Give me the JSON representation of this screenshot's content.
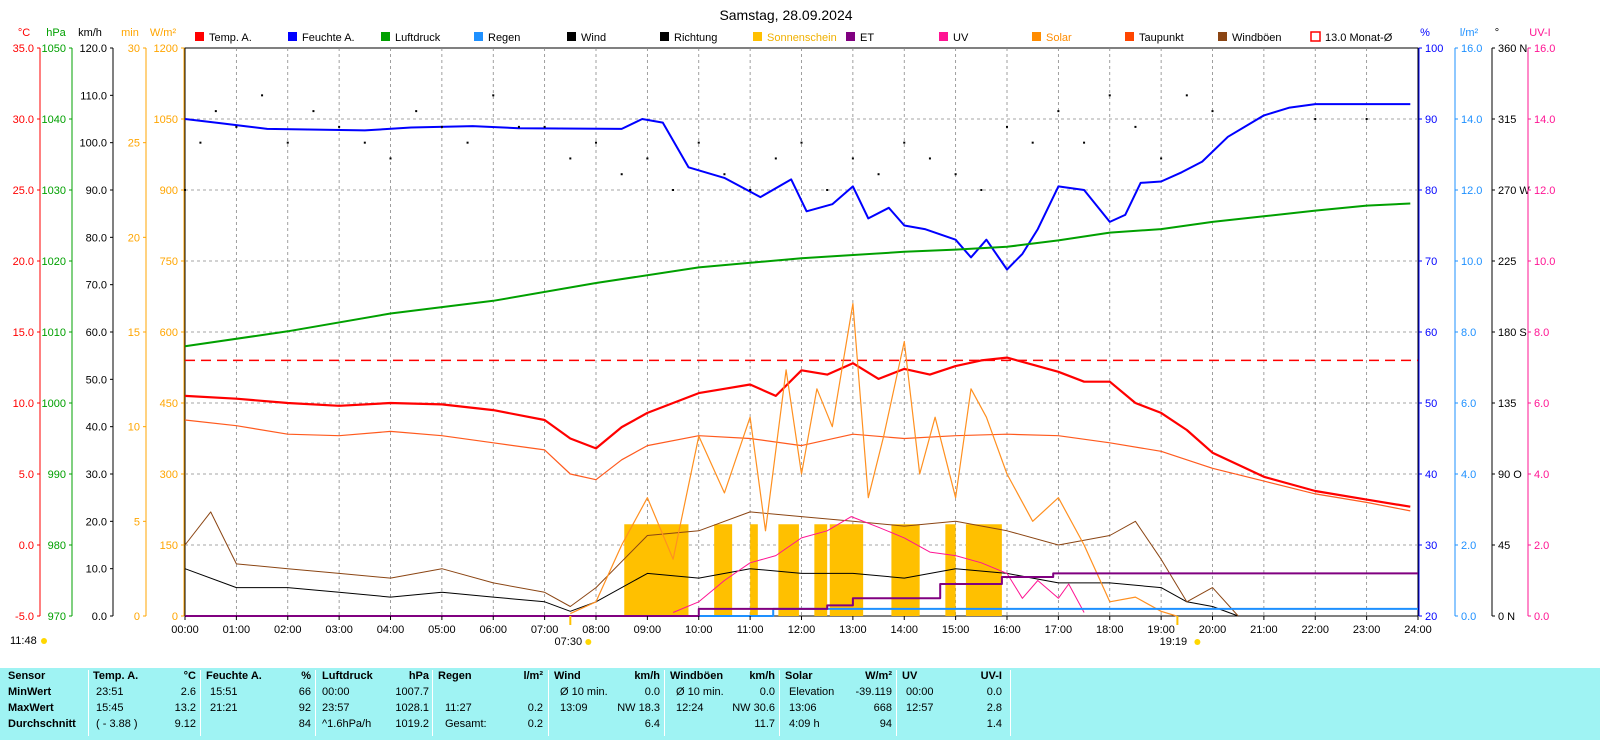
{
  "title": "Samstag, 28.09.2024",
  "legend": [
    {
      "label": "Temp. A.",
      "color": "#ff0000",
      "style": "fill"
    },
    {
      "label": "Feuchte A.",
      "color": "#0000ff",
      "style": "fill"
    },
    {
      "label": "Luftdruck",
      "color": "#00a000",
      "style": "fill"
    },
    {
      "label": "Regen",
      "color": "#1e90ff",
      "style": "fill"
    },
    {
      "label": "Wind",
      "color": "#000000",
      "style": "fill"
    },
    {
      "label": "Richtung",
      "color": "#000000",
      "style": "fill"
    },
    {
      "label": "Sonnenschein",
      "color": "#ffc000",
      "style": "fill"
    },
    {
      "label": "ET",
      "color": "#800080",
      "style": "fill"
    },
    {
      "label": "UV",
      "color": "#ff1493",
      "style": "fill"
    },
    {
      "label": "Solar",
      "color": "#ff8c00",
      "style": "fill"
    },
    {
      "label": "Taupunkt",
      "color": "#ff4500",
      "style": "fill"
    },
    {
      "label": "Windböen",
      "color": "#8b4513",
      "style": "fill"
    },
    {
      "label": "13.0 Monat-Ø",
      "color": "#ff0000",
      "style": "outline"
    }
  ],
  "left_axes": [
    {
      "unit": "°C",
      "color": "#ff0000",
      "ticks": [
        "35.0",
        "30.0",
        "25.0",
        "20.0",
        "15.0",
        "10.0",
        "5.0",
        "0.0",
        "-5.0"
      ]
    },
    {
      "unit": "hPa",
      "color": "#00a000",
      "ticks": [
        "1050",
        "1040",
        "1030",
        "1020",
        "1010",
        "1000",
        "990",
        "980",
        "970"
      ]
    },
    {
      "unit": "km/h",
      "color": "#000000",
      "ticks": [
        "120.0",
        "110.0",
        "100.0",
        "90.0",
        "80.0",
        "70.0",
        "60.0",
        "50.0",
        "40.0",
        "30.0",
        "20.0",
        "10.0",
        "0.0"
      ]
    },
    {
      "unit": "min",
      "color": "#ffa500",
      "ticks": [
        "30",
        "25",
        "20",
        "15",
        "10",
        "5",
        "0"
      ]
    },
    {
      "unit": "W/m²",
      "color": "#ffa500",
      "ticks": [
        "1200",
        "1050",
        "900",
        "750",
        "600",
        "450",
        "300",
        "150",
        "0"
      ]
    }
  ],
  "right_axes": [
    {
      "unit": "%",
      "color": "#0000ff",
      "ticks": [
        "100",
        "90",
        "80",
        "70",
        "60",
        "50",
        "40",
        "30",
        "20"
      ]
    },
    {
      "unit": "l/m²",
      "color": "#1e90ff",
      "ticks": [
        "16.0",
        "14.0",
        "12.0",
        "10.0",
        "8.0",
        "6.0",
        "4.0",
        "2.0",
        "0.0"
      ]
    },
    {
      "unit": "°",
      "color": "#000000",
      "ticks": [
        "360 N",
        "315",
        "270 W",
        "225",
        "180 S",
        "135",
        "90 O",
        "45",
        "0 N"
      ]
    },
    {
      "unit": "UV-I",
      "color": "#ff1493",
      "ticks": [
        "16.0",
        "14.0",
        "12.0",
        "10.0",
        "8.0",
        "6.0",
        "4.0",
        "2.0",
        "0.0"
      ]
    }
  ],
  "x_ticks": [
    "00:00",
    "01:00",
    "02:00",
    "03:00",
    "04:00",
    "05:00",
    "06:00",
    "07:00",
    "08:00",
    "09:00",
    "10:00",
    "11:00",
    "12:00",
    "13:00",
    "14:00",
    "15:00",
    "16:00",
    "17:00",
    "18:00",
    "19:00",
    "20:00",
    "21:00",
    "22:00",
    "23:00",
    "24:00"
  ],
  "sunrise": "07:30",
  "sunset": "19:19",
  "current_time": "11:48",
  "chart_data": {
    "type": "line",
    "title": "Samstag, 28.09.2024",
    "x_range_hours": [
      0,
      24
    ],
    "month_avg_temp": 13.0,
    "series": [
      {
        "name": "Temp. A.",
        "unit": "°C",
        "x": [
          0,
          1,
          2,
          3,
          4,
          5,
          6,
          7,
          7.5,
          8,
          8.5,
          9,
          9.5,
          10,
          10.5,
          11,
          11.5,
          12,
          12.5,
          13,
          13.5,
          14,
          14.5,
          15,
          15.5,
          16,
          16.5,
          17,
          17.5,
          18,
          18.5,
          19,
          19.5,
          20,
          21,
          22,
          23,
          23.85
        ],
        "y": [
          10.5,
          10.3,
          10.0,
          9.8,
          10.0,
          9.9,
          9.5,
          8.8,
          7.5,
          6.8,
          8.3,
          9.3,
          10.0,
          10.7,
          11.0,
          11.3,
          10.5,
          12.3,
          12.0,
          12.8,
          11.7,
          12.4,
          12.0,
          12.6,
          13.0,
          13.2,
          12.7,
          12.2,
          11.5,
          11.5,
          10.0,
          9.3,
          8.1,
          6.5,
          4.8,
          3.8,
          3.2,
          2.7
        ]
      },
      {
        "name": "Taupunkt",
        "unit": "°C",
        "x": [
          0,
          1,
          2,
          3,
          4,
          5,
          6,
          7,
          7.5,
          8,
          8.5,
          9,
          10,
          11,
          12,
          13,
          14,
          15,
          16,
          17,
          18,
          19,
          20,
          21,
          22,
          23,
          23.85
        ],
        "y": [
          8.8,
          8.4,
          7.8,
          7.7,
          8.0,
          7.7,
          7.2,
          6.7,
          5.0,
          4.6,
          6.0,
          7.0,
          7.7,
          7.5,
          7.0,
          7.8,
          7.5,
          7.7,
          7.8,
          7.7,
          7.2,
          6.6,
          5.4,
          4.5,
          3.6,
          3.0,
          2.4
        ]
      },
      {
        "name": "Feuchte A.",
        "unit": "%",
        "x": [
          0,
          0.7,
          1.6,
          3.5,
          4.4,
          5.6,
          6.5,
          8.5,
          8.9,
          9.3,
          9.8,
          10.5,
          11.2,
          11.8,
          12.1,
          12.6,
          13.0,
          13.3,
          13.7,
          14.0,
          14.4,
          15.0,
          15.3,
          15.6,
          16.0,
          16.3,
          16.6,
          17.0,
          17.5,
          18.0,
          18.3,
          18.6,
          19.0,
          19.4,
          19.8,
          20.3,
          21.0,
          21.5,
          22.0,
          22.5,
          23.0,
          23.85
        ],
        "y": [
          90.0,
          89.4,
          88.6,
          88.4,
          88.8,
          89.0,
          88.7,
          88.6,
          90.0,
          89.5,
          83.2,
          81.7,
          79.0,
          81.5,
          77.0,
          78.0,
          80.5,
          76.0,
          77.5,
          75.0,
          74.5,
          73.0,
          70.5,
          73.0,
          68.8,
          71.0,
          74.5,
          80.5,
          80.0,
          75.5,
          76.5,
          81.0,
          81.2,
          82.5,
          84.0,
          87.5,
          90.5,
          91.6,
          92.1,
          92.1,
          92.1,
          92.1
        ]
      },
      {
        "name": "Luftdruck",
        "unit": "hPa",
        "x": [
          0,
          2,
          4,
          6,
          8,
          10,
          12,
          14,
          15,
          16,
          17,
          18,
          19,
          20,
          21,
          22,
          23,
          23.85
        ],
        "y": [
          1008.0,
          1010.1,
          1012.6,
          1014.4,
          1016.9,
          1019.1,
          1020.4,
          1021.3,
          1021.6,
          1022.0,
          1022.9,
          1024.0,
          1024.5,
          1025.5,
          1026.3,
          1027.1,
          1027.8,
          1028.1
        ]
      },
      {
        "name": "Wind",
        "unit": "km/h",
        "x": [
          0,
          1,
          2,
          3,
          4,
          5,
          6,
          7,
          7.5,
          8,
          9,
          10,
          11,
          12,
          13,
          14,
          15,
          16,
          17,
          18,
          19,
          19.5,
          20,
          20.5
        ],
        "y": [
          10,
          6,
          6,
          5,
          4,
          5,
          4,
          3,
          1,
          3,
          9,
          8,
          10,
          9,
          9,
          8,
          10,
          9,
          7,
          7,
          6,
          3,
          2,
          0
        ]
      },
      {
        "name": "Windböen",
        "unit": "km/h",
        "x": [
          0,
          0.5,
          1,
          2,
          3,
          4,
          5,
          6,
          7,
          7.5,
          8,
          9,
          10,
          11,
          12,
          13,
          14,
          15,
          16,
          17,
          18,
          18.5,
          19,
          19.5,
          20,
          20.5
        ],
        "y": [
          15,
          22,
          11,
          10,
          9,
          8,
          10,
          7,
          5,
          2,
          6,
          17,
          18,
          22,
          21,
          20,
          19,
          20,
          18,
          15,
          17,
          20,
          12,
          3,
          6,
          0
        ]
      },
      {
        "name": "Solar",
        "unit": "W/m²",
        "x": [
          7.5,
          8,
          8.5,
          9,
          9.5,
          10,
          10.5,
          11,
          11.3,
          11.7,
          12,
          12.3,
          12.6,
          13,
          13.3,
          13.6,
          14,
          14.3,
          14.6,
          15,
          15.3,
          15.6,
          16,
          16.5,
          17,
          17.5,
          18,
          18.5,
          19,
          19.3
        ],
        "y": [
          5,
          30,
          150,
          250,
          120,
          380,
          260,
          420,
          180,
          520,
          300,
          480,
          400,
          660,
          250,
          380,
          580,
          300,
          420,
          250,
          480,
          420,
          300,
          200,
          250,
          150,
          30,
          40,
          10,
          0
        ]
      },
      {
        "name": "UV",
        "unit": "UV-I",
        "x": [
          9.5,
          10,
          10.5,
          11,
          11.5,
          12,
          12.5,
          12.97,
          13.5,
          14,
          14.5,
          15,
          15.5,
          16,
          16.3,
          16.6,
          17,
          17.2,
          17.5
        ],
        "y": [
          0.1,
          0.4,
          1.0,
          1.5,
          1.7,
          2.2,
          2.4,
          2.8,
          2.5,
          2.2,
          1.8,
          1.7,
          1.5,
          1.2,
          0.5,
          1.0,
          0.5,
          0.9,
          0.1
        ]
      },
      {
        "name": "Regen",
        "unit": "l/m²",
        "x": [
          0,
          11.45,
          11.45,
          24
        ],
        "y": [
          0,
          0,
          0.2,
          0.2
        ]
      },
      {
        "name": "ET",
        "unit": "l/m²",
        "x": [
          0,
          10,
          10,
          12.5,
          12.5,
          13,
          13,
          14.7,
          14.7,
          15.9,
          15.9,
          16.9,
          16.9,
          24
        ],
        "y": [
          0,
          0,
          0.2,
          0.2,
          0.3,
          0.3,
          0.5,
          0.5,
          0.9,
          0.9,
          1.1,
          1.1,
          1.2,
          1.2
        ]
      },
      {
        "name": "Richtung",
        "unit": "°",
        "x": [
          0,
          0.3,
          0.6,
          1,
          1.5,
          2,
          2.5,
          3,
          3.5,
          4,
          4.5,
          5,
          5.5,
          6,
          6.5,
          7,
          7.5,
          8,
          8.5,
          9,
          9.5,
          10,
          10.5,
          11,
          11.5,
          12,
          12.5,
          13,
          13.5,
          14,
          14.5,
          15,
          15.5,
          16,
          16.5,
          17,
          17.5,
          18,
          18.5,
          19,
          19.5,
          20,
          22,
          23
        ],
        "y": [
          270,
          300,
          320,
          310,
          330,
          300,
          320,
          310,
          300,
          290,
          320,
          310,
          300,
          330,
          310,
          310,
          290,
          300,
          280,
          290,
          270,
          300,
          280,
          270,
          290,
          300,
          270,
          290,
          280,
          300,
          290,
          280,
          270,
          310,
          300,
          320,
          300,
          330,
          310,
          290,
          330,
          320,
          315,
          315
        ]
      }
    ],
    "sunshine_blocks_hours": [
      [
        8.55,
        9.8
      ],
      [
        10.3,
        10.65
      ],
      [
        11.0,
        11.15
      ],
      [
        11.55,
        11.95
      ],
      [
        12.25,
        12.5
      ],
      [
        12.55,
        13.2
      ],
      [
        13.75,
        14.3
      ],
      [
        14.8,
        15.0
      ],
      [
        15.2,
        15.9
      ]
    ]
  },
  "stats": {
    "headers": {
      "sensor": "Sensor",
      "temp": "Temp. A.",
      "temp_unit": "°C",
      "hum": "Feuchte A.",
      "hum_unit": "%",
      "press": "Luftdruck",
      "press_unit": "hPa",
      "rain": "Regen",
      "rain_unit": "l/m²",
      "wind": "Wind",
      "wind_unit": "km/h",
      "gust": "Windböen",
      "gust_unit": "km/h",
      "solar": "Solar",
      "solar_unit": "W/m²",
      "uv": "UV",
      "uvi": "UV-I"
    },
    "rows": [
      {
        "label": "MinWert",
        "temp_t": "23:51",
        "temp_v": "2.6",
        "hum_t": "15:51",
        "hum_v": "66",
        "press_t": "00:00",
        "press_v": "1007.7",
        "rain_t": "",
        "rain_v": "",
        "wind_t": "Ø 10 min.",
        "wind_v": "0.0",
        "gust_t": "Ø 10 min.",
        "gust_v": "0.0",
        "solar_t": "Elevation",
        "solar_v": "-39.119",
        "uv_t": "00:00",
        "uv_v": "0.0"
      },
      {
        "label": "MaxWert",
        "temp_t": "15:45",
        "temp_v": "13.2",
        "hum_t": "21:21",
        "hum_v": "92",
        "press_t": "23:57",
        "press_v": "1028.1",
        "rain_t": "11:27",
        "rain_v": "0.2",
        "wind_t": "13:09",
        "wind_v": "NW 18.3",
        "gust_t": "12:24",
        "gust_v": "NW 30.6",
        "solar_t": "13:06",
        "solar_v": "668",
        "uv_t": "12:57",
        "uv_v": "2.8"
      },
      {
        "label": "Durchschnitt",
        "temp_t": "( - 3.88 )",
        "temp_v": "9.12",
        "hum_t": "",
        "hum_v": "84",
        "press_t": "^1.6hPa/h",
        "press_v": "1019.2",
        "rain_t": "Gesamt:",
        "rain_v": "0.2",
        "wind_t": "",
        "wind_v": "6.4",
        "gust_t": "",
        "gust_v": "11.7",
        "solar_t": "4:09 h",
        "solar_v": "94",
        "uv_t": "",
        "uv_v": "1.4"
      }
    ]
  }
}
